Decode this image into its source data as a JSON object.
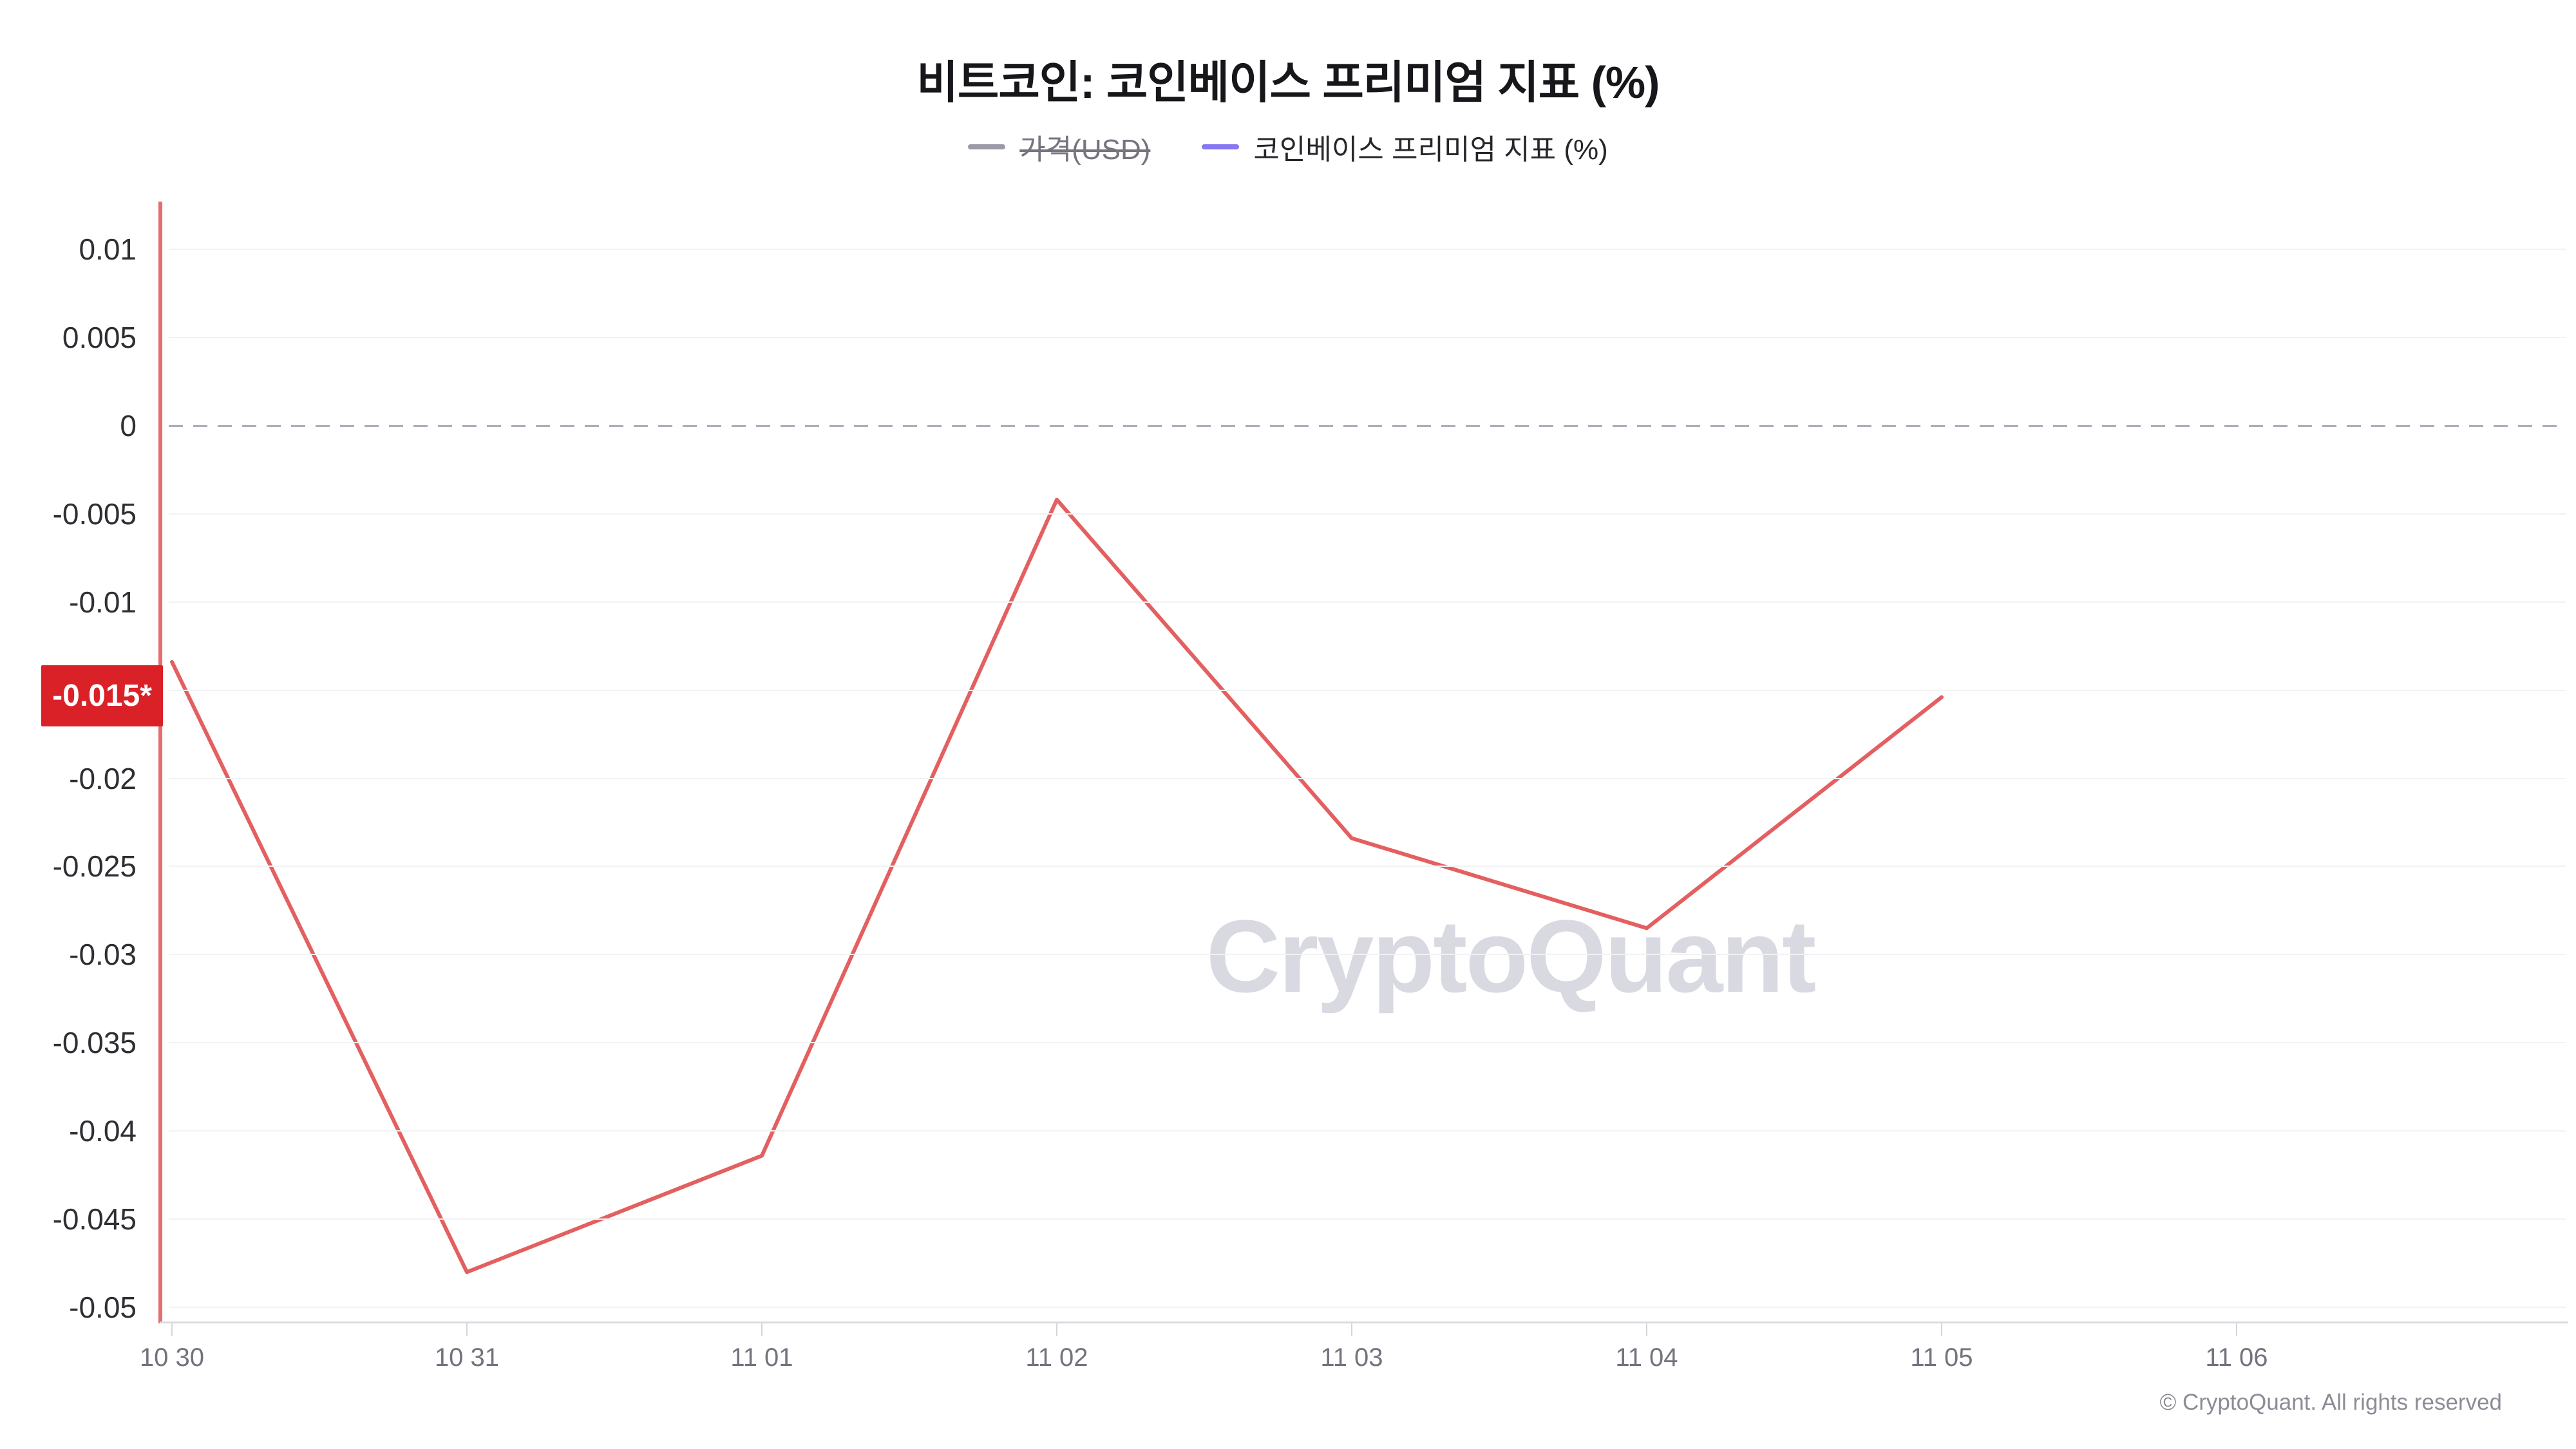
{
  "header": {
    "title": "비트코인: 코인베이스 프리미엄 지표 (%)"
  },
  "legend": {
    "items": [
      {
        "label": "가격(USD)",
        "marker_color": "#9b9ba8",
        "text_color": "#75757f",
        "disabled": true
      },
      {
        "label": "코인베이스 프리미엄 지표 (%)",
        "marker_color": "#8678f2",
        "text_color": "#26262b",
        "disabled": false
      }
    ]
  },
  "y_axis": {
    "badge": {
      "label": "-0.015*",
      "value": -0.0153,
      "bg_color": "#da2128",
      "text_color": "#ffffff"
    }
  },
  "watermark": {
    "text": "CryptoQuant",
    "color": "#d9d9e1"
  },
  "footer": {
    "copyright": "© CryptoQuant. All rights reserved"
  },
  "colors": {
    "series_line": "#e45f60",
    "y_axis_line": "#e66d6f",
    "badge_red": "#da2128",
    "gridline": "#f2f2f5",
    "zero_dash": "#aeaebd",
    "x_axis_line": "#dadae1"
  },
  "chart_data": {
    "type": "line",
    "title": "비트코인: 코인베이스 프리미엄 지표 (%)",
    "x_categories": [
      "10 30",
      "10 31",
      "11 01",
      "11 02",
      "11 03",
      "11 04",
      "11 05",
      "11 06"
    ],
    "series": [
      {
        "name": "코인베이스 프리미엄 지표 (%)",
        "color": "#e45f60",
        "values": [
          -0.0134,
          -0.048,
          -0.0414,
          -0.0042,
          -0.0234,
          -0.0285,
          -0.0154
        ]
      }
    ],
    "hidden_series": [
      {
        "name": "가격(USD)"
      }
    ],
    "y_ticks": [
      {
        "value": 0.01,
        "label": "0.01"
      },
      {
        "value": 0.005,
        "label": "0.005"
      },
      {
        "value": 0,
        "label": "0"
      },
      {
        "value": -0.005,
        "label": "-0.005"
      },
      {
        "value": -0.01,
        "label": "-0.01"
      },
      {
        "value": -0.015,
        "label": "-0.015",
        "badge": true
      },
      {
        "value": -0.02,
        "label": "-0.02"
      },
      {
        "value": -0.025,
        "label": "-0.025"
      },
      {
        "value": -0.03,
        "label": "-0.03"
      },
      {
        "value": -0.035,
        "label": "-0.035"
      },
      {
        "value": -0.04,
        "label": "-0.04"
      },
      {
        "value": -0.045,
        "label": "-0.045"
      },
      {
        "value": -0.05,
        "label": "-0.05"
      }
    ],
    "ylim": [
      -0.0508,
      0.0127
    ],
    "xlabel": "",
    "ylabel": "",
    "grid": "horizontal",
    "zero_line": "dashed",
    "legend_position": "top-center",
    "x_layout": {
      "first_tick_offset": 19,
      "tick_step": 458
    }
  }
}
